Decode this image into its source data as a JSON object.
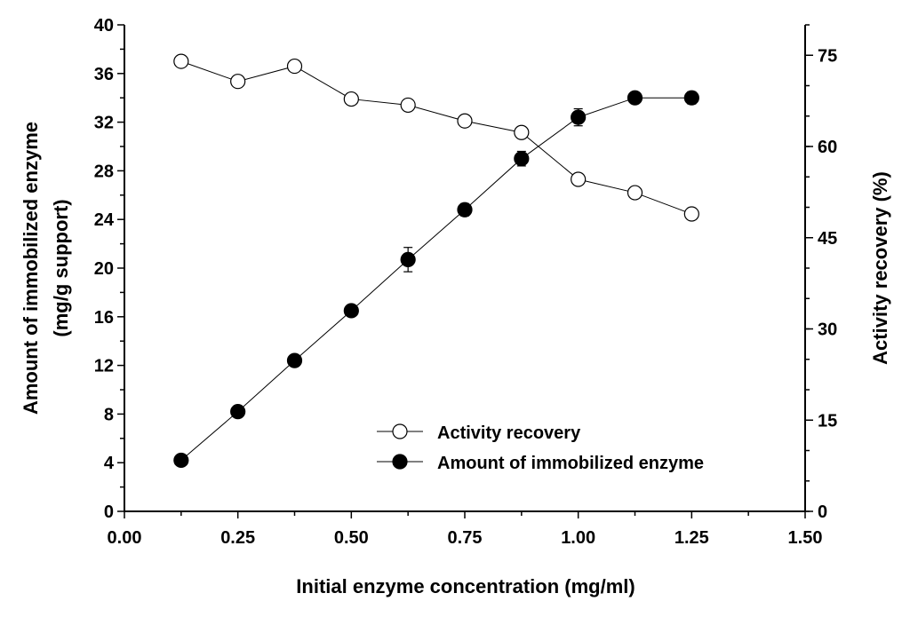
{
  "chart_data": {
    "type": "line",
    "xlabel": "Initial enzyme concentration (mg/ml)",
    "ylabel_left_line1": "Amount of immobilized enzyme",
    "ylabel_left_line2": "(mg/g support)",
    "ylabel_right": "Activity recovery  (%)",
    "xlim": [
      0,
      1.5
    ],
    "ylim_left": [
      0,
      40
    ],
    "ylim_right": [
      0,
      80
    ],
    "x_ticks": [
      "0.00",
      "0.25",
      "0.50",
      "0.75",
      "1.00",
      "1.25",
      "1.50"
    ],
    "y_left_ticks": [
      "0",
      "4",
      "8",
      "12",
      "16",
      "20",
      "24",
      "28",
      "32",
      "36",
      "40"
    ],
    "y_right_ticks": [
      "0",
      "15",
      "30",
      "45",
      "60",
      "75"
    ],
    "x": [
      0.125,
      0.25,
      0.375,
      0.5,
      0.625,
      0.75,
      0.875,
      1.0,
      1.125,
      1.25
    ],
    "series": [
      {
        "name": "Activity recovery",
        "axis": "right",
        "marker": "open-circle",
        "values": [
          74.0,
          70.7,
          73.2,
          67.8,
          66.8,
          64.2,
          62.3,
          54.6,
          52.4,
          48.9
        ]
      },
      {
        "name": "Amount of immobilized enzyme",
        "axis": "left",
        "marker": "filled-circle",
        "values": [
          4.2,
          8.2,
          12.4,
          16.5,
          20.7,
          24.8,
          29.0,
          32.4,
          34.0,
          34.0
        ],
        "errors": [
          0.3,
          0.4,
          0.3,
          0.4,
          1.0,
          0.5,
          0.6,
          0.7,
          0.3,
          0.5
        ]
      }
    ],
    "legend_position": "lower-right",
    "grid": false
  }
}
